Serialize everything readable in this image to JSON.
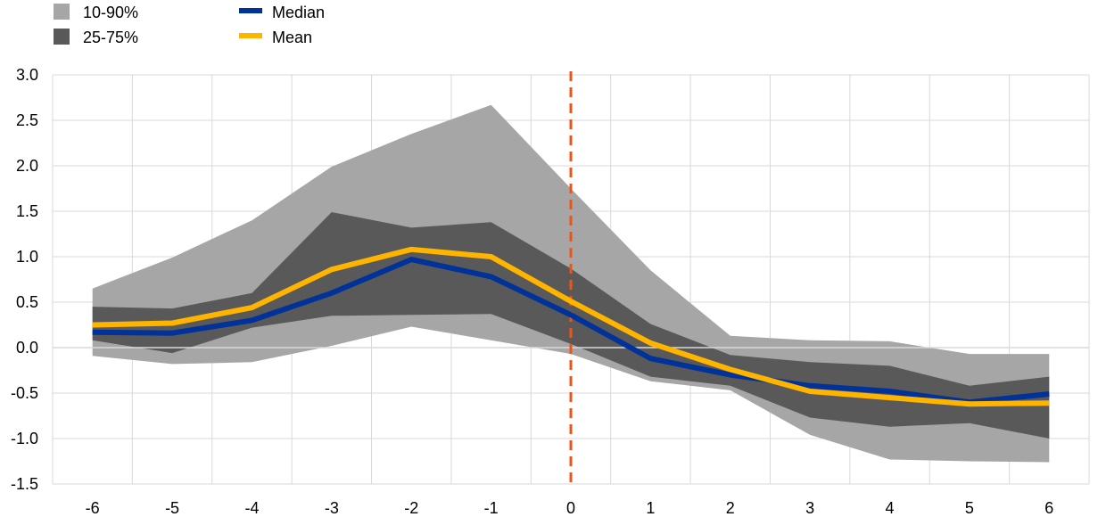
{
  "chart_data": {
    "type": "area",
    "title": "",
    "xlabel": "",
    "ylabel": "",
    "x": [
      -6,
      -5,
      -4,
      -3,
      -2,
      -1,
      0,
      1,
      2,
      3,
      4,
      5,
      6
    ],
    "ylim": [
      -1.5,
      3.0
    ],
    "yticks": [
      "3.0",
      "2.5",
      "2.0",
      "1.5",
      "1.0",
      "0.5",
      "0.0",
      "-0.5",
      "-1.0",
      "-1.5"
    ],
    "ytick_values": [
      3.0,
      2.5,
      2.0,
      1.5,
      1.0,
      0.5,
      0.0,
      -0.5,
      -1.0,
      -1.5
    ],
    "xticks": [
      "-6",
      "-5",
      "-4",
      "-3",
      "-2",
      "-1",
      "0",
      "1",
      "2",
      "3",
      "4",
      "5",
      "6"
    ],
    "grid": true,
    "legend_position": "top-left",
    "bands": [
      {
        "name": "10-90%",
        "color": "#a6a6a6",
        "upper": [
          0.65,
          0.99,
          1.4,
          1.99,
          2.35,
          2.67,
          1.75,
          0.85,
          0.13,
          0.08,
          0.07,
          -0.07,
          -0.07
        ],
        "lower": [
          -0.09,
          -0.18,
          -0.16,
          0.02,
          0.23,
          0.08,
          -0.07,
          -0.37,
          -0.47,
          -0.96,
          -1.23,
          -1.25,
          -1.26
        ]
      },
      {
        "name": "25-75%",
        "color": "#595959",
        "upper": [
          0.45,
          0.43,
          0.6,
          1.49,
          1.32,
          1.38,
          0.87,
          0.26,
          -0.08,
          -0.16,
          -0.2,
          -0.42,
          -0.32
        ],
        "lower": [
          0.08,
          -0.06,
          0.22,
          0.35,
          0.36,
          0.37,
          0.04,
          -0.32,
          -0.42,
          -0.77,
          -0.87,
          -0.83,
          -1.0
        ]
      }
    ],
    "series": [
      {
        "name": "Median",
        "color": "#003299",
        "values": [
          0.17,
          0.16,
          0.3,
          0.6,
          0.97,
          0.78,
          0.36,
          -0.12,
          -0.3,
          -0.42,
          -0.48,
          -0.6,
          -0.51
        ]
      },
      {
        "name": "Mean",
        "color": "#ffb400",
        "values": [
          0.25,
          0.27,
          0.44,
          0.86,
          1.08,
          1.0,
          0.51,
          0.05,
          -0.24,
          -0.48,
          -0.55,
          -0.62,
          -0.61
        ]
      }
    ],
    "vline": {
      "x": 0,
      "color": "#e8561a"
    }
  },
  "legend": {
    "band_outer": "10-90%",
    "band_inner": "25-75%",
    "median": "Median",
    "mean": "Mean"
  }
}
